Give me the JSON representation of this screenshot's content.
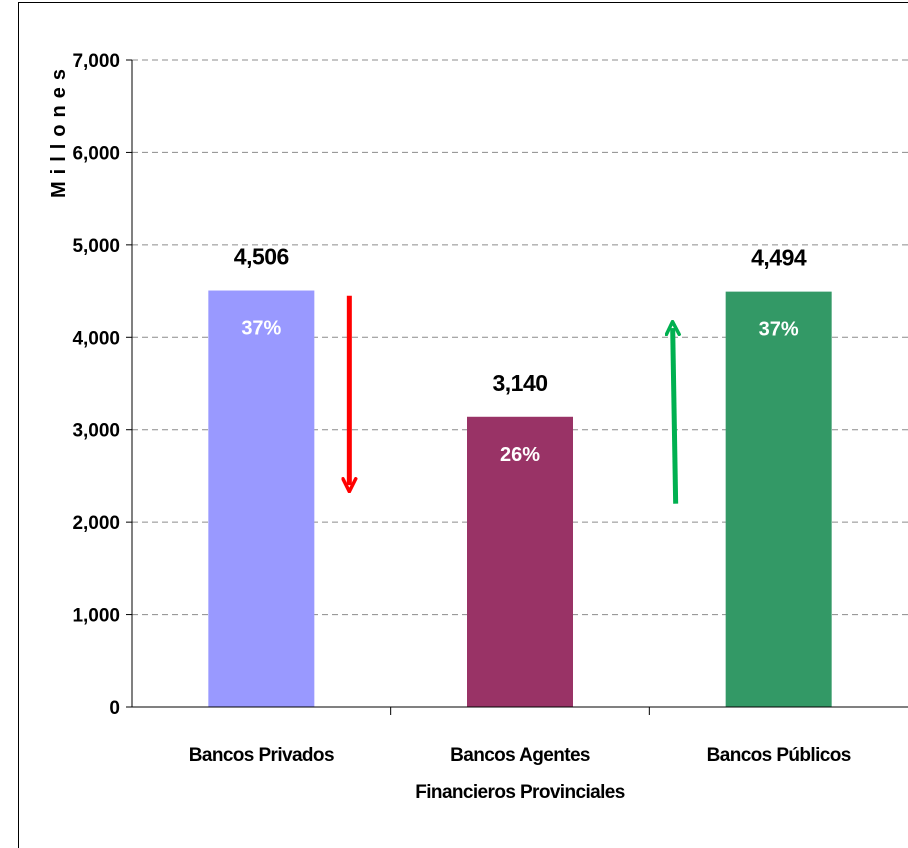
{
  "chart_data": {
    "type": "bar",
    "ylabel": "Millones",
    "ylim": [
      0,
      7000
    ],
    "yticks": [
      "0",
      "1,000",
      "2,000",
      "3,000",
      "4,000",
      "5,000",
      "6,000",
      "7,000"
    ],
    "grid": "horizontal dashed",
    "categories": [
      [
        "Bancos Privados"
      ],
      [
        "Bancos Agentes",
        "Financieros Provinciales"
      ],
      [
        "Bancos Públicos"
      ]
    ],
    "values": [
      4506,
      3140,
      4494
    ],
    "value_labels": [
      "4,506",
      "3,140",
      "4,494"
    ],
    "percent_labels": [
      "37%",
      "26%",
      "37%"
    ],
    "colors": [
      "#9999ff",
      "#993366",
      "#339966"
    ],
    "annotations": [
      {
        "type": "arrow",
        "direction": "down",
        "color": "#ff0000",
        "from": 4450,
        "to": 2400,
        "near_category": 0
      },
      {
        "type": "arrow",
        "direction": "up",
        "color": "#00b050",
        "from": 2200,
        "to": 4100,
        "near_category": 2
      }
    ]
  }
}
